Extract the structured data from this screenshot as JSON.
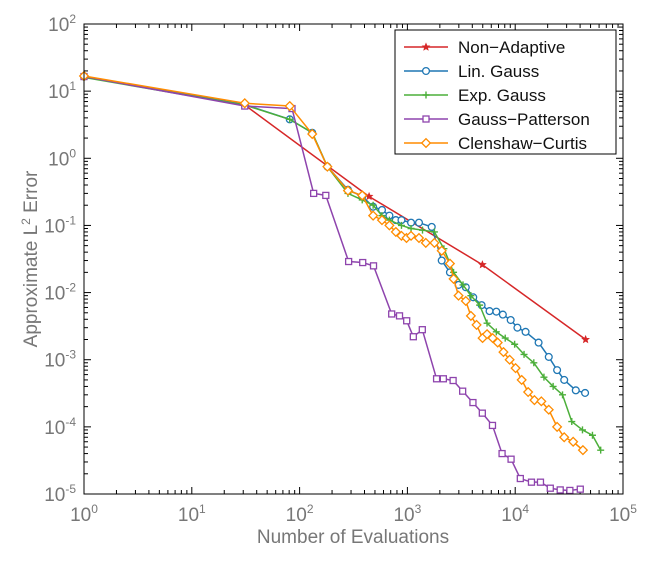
{
  "chart_data": {
    "type": "line",
    "xlabel": "Number of Evaluations",
    "ylabel_base": "Approximate L",
    "ylabel_sup": "2",
    "ylabel_tail": " Error",
    "xscale": "log",
    "yscale": "log",
    "xlim": [
      1,
      100000
    ],
    "ylim": [
      1e-05,
      100
    ],
    "x_ticks": [
      {
        "base": "10",
        "exp": "0",
        "value": 1
      },
      {
        "base": "10",
        "exp": "1",
        "value": 10
      },
      {
        "base": "10",
        "exp": "2",
        "value": 100
      },
      {
        "base": "10",
        "exp": "3",
        "value": 1000
      },
      {
        "base": "10",
        "exp": "4",
        "value": 10000
      },
      {
        "base": "10",
        "exp": "5",
        "value": 100000
      }
    ],
    "y_ticks": [
      {
        "base": "10",
        "exp": "-5",
        "value": 1e-05
      },
      {
        "base": "10",
        "exp": "-4",
        "value": 0.0001
      },
      {
        "base": "10",
        "exp": "-3",
        "value": 0.001
      },
      {
        "base": "10",
        "exp": "-2",
        "value": 0.01
      },
      {
        "base": "10",
        "exp": "-1",
        "value": 0.1
      },
      {
        "base": "10",
        "exp": "0",
        "value": 1
      },
      {
        "base": "10",
        "exp": "1",
        "value": 10
      },
      {
        "base": "10",
        "exp": "2",
        "value": 100
      }
    ],
    "grid": false,
    "legend_position": "top-right",
    "series": [
      {
        "name": "Non−Adaptive",
        "color": "#d62728",
        "marker": "star",
        "points": [
          [
            1,
            16.5
          ],
          [
            31,
            6.2
          ],
          [
            441,
            0.27
          ],
          [
            4961,
            0.026
          ],
          [
            45000,
            0.002
          ]
        ]
      },
      {
        "name": "Lin. Gauss",
        "color": "#1f77b4",
        "marker": "circle",
        "points": [
          [
            1,
            16.5
          ],
          [
            31,
            6.3
          ],
          [
            81,
            3.8
          ],
          [
            131,
            2.4
          ],
          [
            181,
            0.75
          ],
          [
            281,
            0.34
          ],
          [
            381,
            0.27
          ],
          [
            481,
            0.19
          ],
          [
            581,
            0.17
          ],
          [
            681,
            0.14
          ],
          [
            781,
            0.12
          ],
          [
            881,
            0.12
          ],
          [
            1081,
            0.11
          ],
          [
            1281,
            0.11
          ],
          [
            1681,
            0.095
          ],
          [
            2081,
            0.03
          ],
          [
            2481,
            0.02
          ],
          [
            2981,
            0.013
          ],
          [
            3481,
            0.012
          ],
          [
            4081,
            0.0085
          ],
          [
            4881,
            0.0065
          ],
          [
            5781,
            0.0053
          ],
          [
            6681,
            0.0052
          ],
          [
            7681,
            0.0047
          ],
          [
            9081,
            0.0039
          ],
          [
            10481,
            0.003
          ],
          [
            12481,
            0.0026
          ],
          [
            16481,
            0.0018
          ],
          [
            20481,
            0.0011
          ],
          [
            24481,
            0.0007
          ],
          [
            28481,
            0.0005
          ],
          [
            36481,
            0.00035
          ],
          [
            44481,
            0.00032
          ]
        ]
      },
      {
        "name": "Exp. Gauss",
        "color": "#4caf3a",
        "marker": "plus",
        "points": [
          [
            1,
            16.0
          ],
          [
            31,
            6.2
          ],
          [
            81,
            3.8
          ],
          [
            131,
            2.4
          ],
          [
            181,
            0.75
          ],
          [
            281,
            0.3
          ],
          [
            381,
            0.24
          ],
          [
            481,
            0.2
          ],
          [
            581,
            0.14
          ],
          [
            681,
            0.12
          ],
          [
            881,
            0.1
          ],
          [
            1081,
            0.09
          ],
          [
            1381,
            0.085
          ],
          [
            1781,
            0.08
          ],
          [
            2181,
            0.045
          ],
          [
            2681,
            0.02
          ],
          [
            3281,
            0.013
          ],
          [
            3881,
            0.009
          ],
          [
            4681,
            0.0065
          ],
          [
            5481,
            0.0035
          ],
          [
            6681,
            0.0026
          ],
          [
            8081,
            0.0021
          ],
          [
            9881,
            0.0017
          ],
          [
            12081,
            0.0012
          ],
          [
            14881,
            0.0009
          ],
          [
            18481,
            0.00055
          ],
          [
            22481,
            0.0004
          ],
          [
            27481,
            0.0003
          ],
          [
            33481,
            0.00012
          ],
          [
            42081,
            9e-05
          ],
          [
            52081,
            7.5e-05
          ],
          [
            62081,
            4.5e-05
          ]
        ]
      },
      {
        "name": "Gauss−Patterson",
        "color": "#8e44ad",
        "marker": "square",
        "points": [
          [
            1,
            16.5
          ],
          [
            31,
            6.0
          ],
          [
            85,
            5.5
          ],
          [
            135,
            0.3
          ],
          [
            175,
            0.28
          ],
          [
            285,
            0.029
          ],
          [
            385,
            0.028
          ],
          [
            485,
            0.025
          ],
          [
            715,
            0.0048
          ],
          [
            845,
            0.0045
          ],
          [
            985,
            0.0038
          ],
          [
            1135,
            0.0022
          ],
          [
            1375,
            0.0028
          ],
          [
            1865,
            0.00052
          ],
          [
            2155,
            0.00052
          ],
          [
            2655,
            0.00049
          ],
          [
            3255,
            0.00034
          ],
          [
            4055,
            0.00023
          ],
          [
            4955,
            0.00016
          ],
          [
            6155,
            0.000105
          ],
          [
            7555,
            4e-05
          ],
          [
            9155,
            3.3e-05
          ],
          [
            11155,
            1.7e-05
          ],
          [
            14155,
            1.5e-05
          ],
          [
            17155,
            1.5e-05
          ],
          [
            21155,
            1.22e-05
          ],
          [
            26155,
            1.15e-05
          ],
          [
            32155,
            1.13e-05
          ],
          [
            40155,
            1.18e-05
          ]
        ]
      },
      {
        "name": "Clenshaw−Curtis",
        "color": "#ff8c00",
        "marker": "diamond",
        "points": [
          [
            1,
            16.8
          ],
          [
            31,
            6.6
          ],
          [
            81,
            6.0
          ],
          [
            131,
            2.3
          ],
          [
            181,
            0.75
          ],
          [
            281,
            0.33
          ],
          [
            381,
            0.28
          ],
          [
            481,
            0.14
          ],
          [
            581,
            0.12
          ],
          [
            681,
            0.1
          ],
          [
            781,
            0.08
          ],
          [
            881,
            0.07
          ],
          [
            981,
            0.065
          ],
          [
            1081,
            0.07
          ],
          [
            1281,
            0.065
          ],
          [
            1481,
            0.055
          ],
          [
            1781,
            0.055
          ],
          [
            2081,
            0.042
          ],
          [
            2481,
            0.027
          ],
          [
            2681,
            0.016
          ],
          [
            2981,
            0.009
          ],
          [
            3481,
            0.0075
          ],
          [
            3881,
            0.0045
          ],
          [
            4381,
            0.0033
          ],
          [
            4981,
            0.0021
          ],
          [
            5481,
            0.0024
          ],
          [
            6181,
            0.0021
          ],
          [
            6881,
            0.0018
          ],
          [
            7781,
            0.0013
          ],
          [
            8881,
            0.001
          ],
          [
            10081,
            0.00075
          ],
          [
            11481,
            0.0005
          ],
          [
            13181,
            0.00033
          ],
          [
            15081,
            0.00025
          ],
          [
            17481,
            0.00024
          ],
          [
            20481,
            0.00018
          ],
          [
            24481,
            0.0001
          ],
          [
            28481,
            7e-05
          ],
          [
            34481,
            6e-05
          ],
          [
            42481,
            4.5e-05
          ]
        ]
      }
    ]
  }
}
